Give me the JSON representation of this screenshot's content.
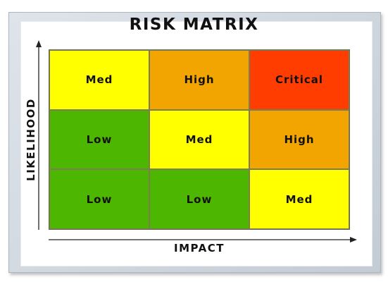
{
  "title": "RISK MATRIX",
  "axes": {
    "x_label": "IMPACT",
    "y_label": "LIKELIHOOD"
  },
  "matrix": {
    "rows": [
      [
        {
          "label": "Med",
          "level": "med"
        },
        {
          "label": "High",
          "level": "high"
        },
        {
          "label": "Critical",
          "level": "critical"
        }
      ],
      [
        {
          "label": "Low",
          "level": "low"
        },
        {
          "label": "Med",
          "level": "med"
        },
        {
          "label": "High",
          "level": "high"
        }
      ],
      [
        {
          "label": "Low",
          "level": "low"
        },
        {
          "label": "Low",
          "level": "low"
        },
        {
          "label": "Med",
          "level": "med"
        }
      ]
    ]
  },
  "colors": {
    "low": "#4db600",
    "med": "#ffff00",
    "high": "#f2a500",
    "critical": "#ff3d00"
  }
}
